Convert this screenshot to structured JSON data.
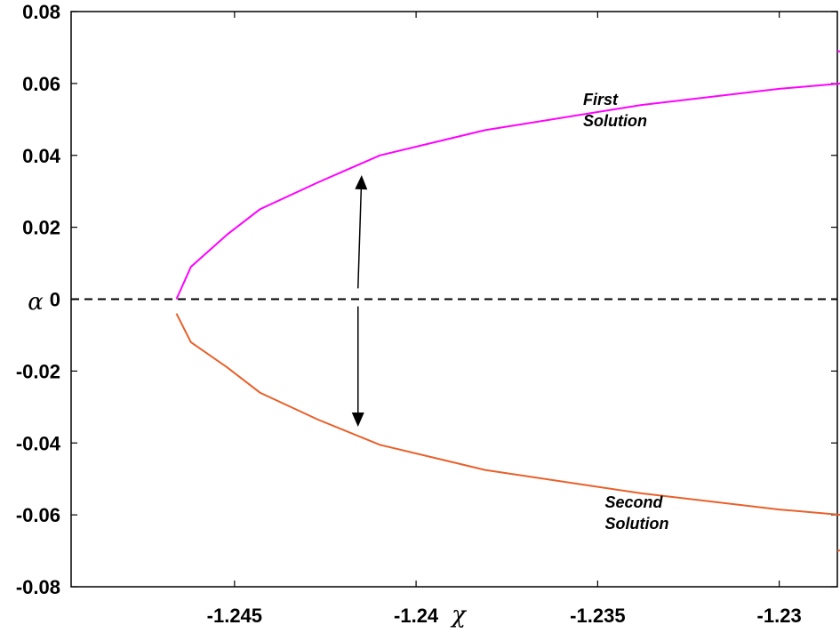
{
  "chart_data": {
    "type": "line",
    "xlabel": "χ",
    "ylabel": "α",
    "xlim": [
      -1.2495,
      -1.2284
    ],
    "ylim": [
      -0.08,
      0.08
    ],
    "xticks": [
      -1.245,
      -1.24,
      -1.235,
      -1.23
    ],
    "xtick_labels": [
      "-1.245",
      "-1.24",
      "-1.235",
      "-1.23"
    ],
    "yticks": [
      -0.08,
      -0.06,
      -0.04,
      -0.02,
      0,
      0.02,
      0.04,
      0.06,
      0.08
    ],
    "ytick_labels": [
      "-0.08",
      "-0.06",
      "-0.04",
      "-0.02",
      "0",
      "0.02",
      "0.04",
      "0.06",
      "0.08"
    ],
    "grid": false,
    "series": [
      {
        "color": "#ff00ff",
        "x": [
          -1.2466,
          -1.2462,
          -1.2452,
          -1.2443,
          -1.2427,
          -1.241,
          -1.2381,
          -1.2338,
          -1.23,
          -1.2248,
          -1.2284
        ],
        "y": [
          0.0,
          0.009,
          0.018,
          0.025,
          0.0325,
          0.04,
          0.047,
          0.054,
          0.0585,
          0.063,
          0.069
        ]
      },
      {
        "color": "#e8602a",
        "x": [
          -1.2466,
          -1.2462,
          -1.2452,
          -1.2443,
          -1.2427,
          -1.241,
          -1.2381,
          -1.2338,
          -1.23,
          -1.2248,
          -1.2284
        ],
        "y": [
          -0.004,
          -0.012,
          -0.019,
          -0.026,
          -0.0335,
          -0.0405,
          -0.0475,
          -0.054,
          -0.0585,
          -0.063,
          -0.07
        ]
      }
    ],
    "reference_line": {
      "y": 0,
      "style": "dashed",
      "color": "#000000"
    },
    "annotations": [
      {
        "lines": [
          "First",
          "Solution"
        ],
        "x": -1.2354,
        "y": 0.054
      },
      {
        "lines": [
          "Second",
          "Solution"
        ],
        "x": -1.2348,
        "y": -0.058
      }
    ],
    "arrows": [
      {
        "x_from": -1.2416,
        "y_from": 0.003,
        "x_to": -1.2415,
        "y_to": 0.0345
      },
      {
        "x_from": -1.2416,
        "y_from": -0.002,
        "x_to": -1.2416,
        "y_to": -0.0355
      }
    ]
  }
}
